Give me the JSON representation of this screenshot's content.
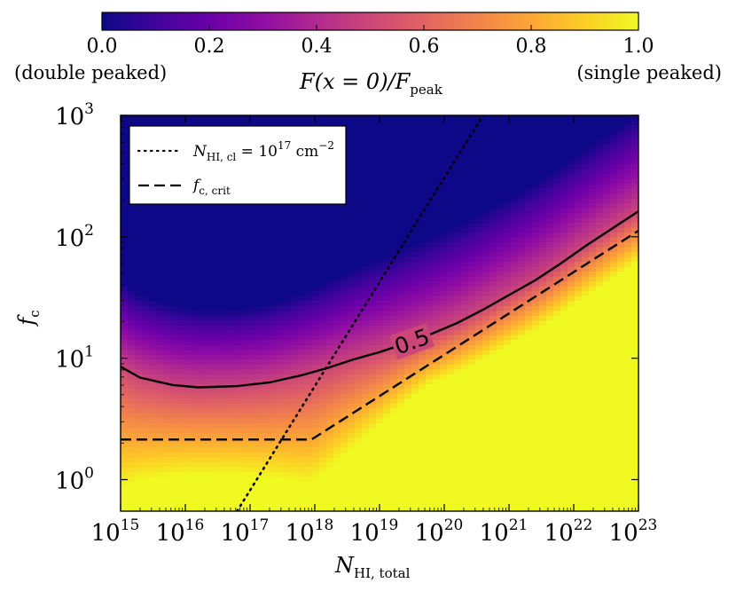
{
  "chart_data": {
    "type": "heatmap",
    "colormap": "plasma",
    "colorbar": {
      "ticks": [
        "0.0",
        "0.2",
        "0.4",
        "0.6",
        "0.8",
        "1.0"
      ],
      "range": [
        0.0,
        1.0
      ],
      "left_note": "(double peaked)",
      "right_note": "(single peaked)",
      "label_main": "F(x = 0)/F",
      "label_sub": "peak"
    },
    "x_axis": {
      "scale": "log",
      "range": [
        1000000000000000.0,
        1e+23
      ],
      "ticks": [
        {
          "base": "10",
          "exp": "15"
        },
        {
          "base": "10",
          "exp": "16"
        },
        {
          "base": "10",
          "exp": "17"
        },
        {
          "base": "10",
          "exp": "18"
        },
        {
          "base": "10",
          "exp": "19"
        },
        {
          "base": "10",
          "exp": "20"
        },
        {
          "base": "10",
          "exp": "21"
        },
        {
          "base": "10",
          "exp": "22"
        },
        {
          "base": "10",
          "exp": "23"
        }
      ],
      "label_main": "N",
      "label_sub": "HI, total"
    },
    "y_axis": {
      "scale": "log",
      "range": [
        0.55,
        1000
      ],
      "ticks": [
        {
          "base": "10",
          "exp": "0"
        },
        {
          "base": "10",
          "exp": "1"
        },
        {
          "base": "10",
          "exp": "2"
        },
        {
          "base": "10",
          "exp": "3"
        }
      ],
      "label_main": "f",
      "label_sub": "c"
    },
    "legend": {
      "position": "upper left",
      "entries": [
        {
          "style": "dotted",
          "text": "N",
          "sub": "HI, cl",
          "rest": " = 10",
          "sup": "17",
          "tail": " cm",
          "tail_sup": "−2"
        },
        {
          "style": "dashed",
          "text": "f",
          "sub": "c, crit"
        }
      ]
    },
    "series": [
      {
        "name": "contour 0.5",
        "style": "solid",
        "label": "0.5",
        "log_x": [
          15.0,
          15.3,
          15.8,
          16.2,
          16.8,
          17.3,
          17.8,
          18.2,
          18.6,
          19.0,
          19.4,
          19.8,
          20.2,
          20.6,
          21.0,
          21.4,
          21.8,
          22.2,
          22.6,
          23.0
        ],
        "log_y": [
          0.93,
          0.84,
          0.78,
          0.76,
          0.77,
          0.8,
          0.86,
          0.92,
          0.99,
          1.05,
          1.12,
          1.2,
          1.29,
          1.4,
          1.52,
          1.64,
          1.78,
          1.93,
          2.07,
          2.21
        ]
      },
      {
        "name": "f_c,crit",
        "style": "dashed",
        "log_x": [
          15.0,
          17.95,
          23.0
        ],
        "log_y": [
          0.33,
          0.33,
          2.05
        ]
      },
      {
        "name": "N_HI,cl = 10^17 cm^-2",
        "style": "dotted",
        "log_x": [
          16.8,
          20.6
        ],
        "log_y": [
          -0.26,
          3.0
        ]
      }
    ]
  }
}
